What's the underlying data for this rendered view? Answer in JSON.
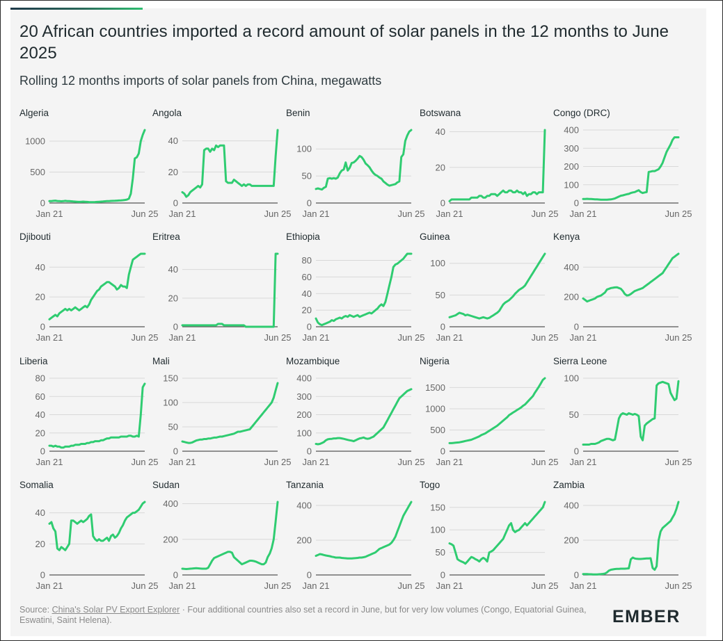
{
  "title": "20 African countries imported a record amount of solar panels in the 12 months to June 2025",
  "subtitle": "Rolling 12 months imports of solar panels from China, megawatts",
  "source": {
    "prefix": "Source: ",
    "link": "China's Solar PV Export Explorer",
    "suffix": " · Four additional countries also set a record in June, but for very low volumes (Congo, Equatorial Guinea, Eswatini, Saint Helena)."
  },
  "logo": {
    "text": "EMBER",
    "color": "#1f2a2e",
    "accent": "#2fbf71"
  },
  "colors": {
    "line": "#2fcc71",
    "grid": "#d8d8d8",
    "axis": "#555555",
    "tick": "#666666"
  },
  "chart_data": [
    {
      "type": "line",
      "panel": "Algeria",
      "x_labels": [
        "Jan 21",
        "Jun 25"
      ],
      "yticks": [
        0,
        500,
        1000
      ],
      "ylim": [
        0,
        1180
      ],
      "values": [
        30,
        32,
        35,
        38,
        33,
        30,
        28,
        30,
        35,
        32,
        30,
        28,
        25,
        22,
        20,
        18,
        20,
        22,
        20,
        18,
        15,
        14,
        15,
        16,
        18,
        20,
        22,
        25,
        28,
        30,
        32,
        34,
        35,
        36,
        38,
        40,
        42,
        45,
        50,
        55,
        70,
        150,
        400,
        720,
        740,
        800,
        1000,
        1100,
        1180
      ]
    },
    {
      "type": "line",
      "panel": "Angola",
      "x_labels": [
        "Jan 21",
        "Jun 25"
      ],
      "yticks": [
        0,
        20,
        40
      ],
      "ylim": [
        0,
        47
      ],
      "values": [
        7,
        6,
        4,
        5,
        7,
        8,
        9,
        10,
        11,
        10,
        12,
        34,
        35,
        35,
        33,
        35,
        34,
        37,
        36,
        37,
        37,
        37,
        14,
        13,
        13,
        13,
        15,
        14,
        13,
        12,
        11,
        12,
        11,
        12,
        12,
        11,
        11,
        11,
        11,
        11,
        11,
        11,
        11,
        11,
        11,
        11,
        11,
        30,
        47
      ]
    },
    {
      "type": "line",
      "panel": "Benin",
      "x_labels": [
        "Jan 21",
        "Jun 25"
      ],
      "yticks": [
        0,
        50,
        100
      ],
      "ylim": [
        0,
        135
      ],
      "values": [
        26,
        27,
        26,
        25,
        28,
        30,
        45,
        46,
        45,
        46,
        45,
        47,
        55,
        60,
        62,
        75,
        60,
        65,
        74,
        75,
        78,
        82,
        87,
        85,
        80,
        73,
        70,
        66,
        60,
        55,
        52,
        50,
        47,
        45,
        40,
        37,
        34,
        32,
        33,
        34,
        35,
        38,
        40,
        85,
        90,
        115,
        125,
        132,
        135
      ]
    },
    {
      "type": "line",
      "panel": "Botswana",
      "x_labels": [
        "Jan 21",
        "Jun 25"
      ],
      "yticks": [
        0,
        20,
        40
      ],
      "ylim": [
        0,
        41
      ],
      "values": [
        1,
        2,
        2,
        2,
        2,
        2,
        2,
        2,
        2,
        2,
        2,
        3,
        3,
        3,
        3,
        4,
        4,
        3,
        3,
        4,
        4,
        5,
        5,
        5,
        4,
        5,
        6,
        7,
        6,
        6,
        7,
        7,
        6,
        6,
        7,
        6,
        6,
        5,
        6,
        4,
        5,
        5,
        6,
        6,
        5,
        6,
        6,
        6,
        41
      ]
    },
    {
      "type": "line",
      "panel": "Congo (DRC)",
      "x_labels": [
        "Jan 21",
        "Jun 25"
      ],
      "yticks": [
        0,
        100,
        200,
        300,
        400
      ],
      "ylim": [
        0,
        360
      ],
      "values": [
        22,
        22,
        23,
        22,
        22,
        21,
        20,
        20,
        19,
        18,
        18,
        18,
        18,
        19,
        20,
        22,
        25,
        30,
        35,
        40,
        42,
        45,
        48,
        50,
        55,
        58,
        60,
        65,
        70,
        60,
        55,
        58,
        60,
        170,
        172,
        175,
        175,
        180,
        185,
        200,
        220,
        250,
        280,
        300,
        320,
        345,
        360,
        360,
        360
      ]
    },
    {
      "type": "line",
      "panel": "Djibouti",
      "x_labels": [
        "Jan 21",
        "Jun 25"
      ],
      "yticks": [
        0,
        20,
        40
      ],
      "ylim": [
        0,
        49
      ],
      "values": [
        5,
        6,
        7,
        8,
        7,
        9,
        10,
        11,
        12,
        11,
        12,
        11,
        12,
        13,
        12,
        11,
        12,
        13,
        14,
        13,
        15,
        18,
        20,
        22,
        24,
        25,
        27,
        28,
        29,
        30,
        30,
        29,
        28,
        27,
        25,
        26,
        28,
        27,
        27,
        26,
        35,
        40,
        45,
        46,
        47,
        48,
        49,
        49,
        49
      ]
    },
    {
      "type": "line",
      "panel": "Eritrea",
      "x_labels": [
        "Jan 21",
        "Jun 25"
      ],
      "yticks": [
        0,
        20,
        40
      ],
      "ylim": [
        0,
        51
      ],
      "values": [
        1,
        1,
        1,
        1,
        1,
        1,
        1,
        1,
        1,
        1,
        1,
        1,
        1,
        1,
        1,
        1,
        1,
        1,
        2,
        2,
        2,
        1,
        1,
        1,
        1,
        1,
        1,
        1,
        1,
        1,
        1,
        1,
        0,
        0,
        0,
        0,
        0,
        0,
        0,
        0,
        0,
        0,
        0,
        0,
        0,
        0,
        0,
        51,
        51
      ]
    },
    {
      "type": "line",
      "panel": "Ethiopia",
      "x_labels": [
        "Jan 21",
        "Jun 25"
      ],
      "yticks": [
        0,
        20,
        40,
        60,
        80
      ],
      "ylim": [
        0,
        88
      ],
      "values": [
        10,
        5,
        3,
        2,
        3,
        4,
        5,
        6,
        8,
        7,
        9,
        10,
        11,
        10,
        12,
        13,
        12,
        14,
        13,
        12,
        13,
        14,
        12,
        13,
        14,
        15,
        16,
        17,
        16,
        18,
        20,
        22,
        25,
        27,
        25,
        30,
        40,
        50,
        60,
        72,
        75,
        76,
        78,
        80,
        82,
        85,
        88,
        88,
        88
      ]
    },
    {
      "type": "line",
      "panel": "Guinea",
      "x_labels": [
        "Jan 21",
        "Jun 25"
      ],
      "yticks": [
        0,
        50,
        100
      ],
      "ylim": [
        0,
        115
      ],
      "values": [
        15,
        16,
        17,
        18,
        20,
        22,
        21,
        20,
        18,
        19,
        18,
        17,
        16,
        15,
        14,
        13,
        14,
        15,
        14,
        13,
        14,
        16,
        18,
        20,
        22,
        25,
        30,
        35,
        38,
        40,
        42,
        45,
        48,
        52,
        55,
        58,
        60,
        62,
        65,
        70,
        75,
        80,
        85,
        90,
        95,
        100,
        105,
        110,
        115
      ]
    },
    {
      "type": "line",
      "panel": "Kenya",
      "x_labels": [
        "Jan 21",
        "Jun 25"
      ],
      "yticks": [
        0,
        200,
        400
      ],
      "ylim": [
        0,
        490
      ],
      "values": [
        190,
        180,
        170,
        175,
        180,
        185,
        190,
        200,
        205,
        210,
        220,
        230,
        250,
        255,
        260,
        262,
        264,
        265,
        260,
        255,
        240,
        220,
        210,
        212,
        220,
        230,
        240,
        245,
        250,
        255,
        260,
        270,
        280,
        290,
        300,
        310,
        320,
        330,
        340,
        350,
        360,
        380,
        400,
        420,
        440,
        460,
        470,
        480,
        490
      ]
    },
    {
      "type": "line",
      "panel": "Liberia",
      "x_labels": [
        "Jan 21",
        "Jun 25"
      ],
      "yticks": [
        0,
        20,
        40,
        60,
        80
      ],
      "ylim": [
        0,
        74
      ],
      "values": [
        6,
        6,
        5,
        6,
        5,
        5,
        4,
        4,
        5,
        5,
        5,
        6,
        6,
        7,
        7,
        7,
        8,
        8,
        8,
        9,
        9,
        10,
        10,
        11,
        11,
        11,
        12,
        12,
        13,
        14,
        14,
        15,
        15,
        15,
        15,
        15,
        16,
        16,
        16,
        16,
        17,
        17,
        16,
        16,
        17,
        16,
        40,
        70,
        74
      ]
    },
    {
      "type": "line",
      "panel": "Mali",
      "x_labels": [
        "Jan 21",
        "Jun 25"
      ],
      "yticks": [
        0,
        50,
        100,
        150
      ],
      "ylim": [
        0,
        140
      ],
      "values": [
        20,
        19,
        18,
        17,
        17,
        18,
        20,
        22,
        23,
        24,
        24,
        25,
        25,
        26,
        26,
        27,
        28,
        28,
        29,
        30,
        30,
        31,
        32,
        33,
        34,
        35,
        36,
        38,
        40,
        40,
        41,
        42,
        43,
        44,
        45,
        50,
        55,
        60,
        65,
        70,
        75,
        80,
        85,
        90,
        95,
        100,
        110,
        125,
        140
      ]
    },
    {
      "type": "line",
      "panel": "Mozambique",
      "x_labels": [
        "Jan 21",
        "Jun 25"
      ],
      "yticks": [
        0,
        100,
        200,
        300,
        400
      ],
      "ylim": [
        0,
        340
      ],
      "values": [
        40,
        38,
        40,
        45,
        50,
        60,
        65,
        67,
        68,
        70,
        70,
        72,
        72,
        70,
        68,
        65,
        62,
        60,
        58,
        55,
        60,
        65,
        70,
        72,
        75,
        70,
        68,
        70,
        75,
        80,
        90,
        100,
        110,
        120,
        130,
        150,
        170,
        190,
        210,
        230,
        250,
        270,
        290,
        300,
        310,
        320,
        330,
        335,
        340
      ]
    },
    {
      "type": "line",
      "panel": "Nigeria",
      "x_labels": [
        "Jan 21",
        "Jun 25"
      ],
      "yticks": [
        0,
        500,
        1000,
        1500
      ],
      "ylim": [
        0,
        1720
      ],
      "values": [
        190,
        190,
        195,
        200,
        205,
        210,
        220,
        230,
        240,
        250,
        260,
        270,
        290,
        310,
        330,
        350,
        380,
        400,
        420,
        450,
        480,
        510,
        540,
        570,
        600,
        640,
        680,
        720,
        760,
        800,
        850,
        880,
        910,
        940,
        970,
        1000,
        1030,
        1070,
        1100,
        1150,
        1200,
        1250,
        1300,
        1380,
        1450,
        1520,
        1600,
        1680,
        1720
      ]
    },
    {
      "type": "line",
      "panel": "Sierra Leone",
      "x_labels": [
        "Jan 21",
        "Jun 25"
      ],
      "yticks": [
        0,
        50,
        100
      ],
      "ylim": [
        0,
        96
      ],
      "values": [
        9,
        9,
        9,
        9,
        10,
        10,
        10,
        11,
        12,
        14,
        15,
        16,
        17,
        17,
        16,
        15,
        16,
        30,
        45,
        50,
        52,
        51,
        50,
        52,
        51,
        50,
        51,
        50,
        48,
        20,
        15,
        35,
        38,
        40,
        42,
        44,
        45,
        90,
        93,
        94,
        95,
        94,
        93,
        92,
        80,
        75,
        70,
        72,
        96
      ]
    },
    {
      "type": "line",
      "panel": "Somalia",
      "x_labels": [
        "Jan 21",
        "Jun 25"
      ],
      "yticks": [
        0,
        20,
        40
      ],
      "ylim": [
        0,
        47
      ],
      "values": [
        33,
        34,
        30,
        28,
        17,
        16,
        18,
        17,
        16,
        18,
        20,
        35,
        35,
        34,
        33,
        34,
        35,
        34,
        35,
        36,
        38,
        39,
        25,
        23,
        22,
        23,
        22,
        22,
        23,
        24,
        22,
        25,
        26,
        24,
        25,
        27,
        30,
        32,
        35,
        37,
        38,
        39,
        40,
        40,
        41,
        42,
        44,
        46,
        47
      ]
    },
    {
      "type": "line",
      "panel": "Sudan",
      "x_labels": [
        "Jan 21",
        "Jun 25"
      ],
      "yticks": [
        0,
        200,
        400
      ],
      "ylim": [
        0,
        410
      ],
      "values": [
        35,
        34,
        33,
        34,
        35,
        36,
        37,
        38,
        37,
        36,
        35,
        35,
        35,
        40,
        60,
        80,
        95,
        100,
        105,
        110,
        115,
        120,
        125,
        130,
        130,
        125,
        100,
        90,
        80,
        70,
        60,
        65,
        70,
        75,
        80,
        80,
        78,
        75,
        70,
        65,
        60,
        60,
        70,
        100,
        120,
        150,
        200,
        300,
        410
      ]
    },
    {
      "type": "line",
      "panel": "Tanzania",
      "x_labels": [
        "Jan 21",
        "Jun 25"
      ],
      "yticks": [
        0,
        200,
        400
      ],
      "ylim": [
        0,
        420
      ],
      "values": [
        110,
        115,
        120,
        118,
        115,
        112,
        110,
        108,
        105,
        103,
        100,
        100,
        100,
        98,
        97,
        96,
        95,
        95,
        95,
        96,
        97,
        98,
        100,
        100,
        102,
        105,
        110,
        115,
        120,
        125,
        130,
        140,
        150,
        155,
        160,
        165,
        170,
        175,
        185,
        200,
        220,
        250,
        280,
        310,
        340,
        360,
        380,
        400,
        420
      ]
    },
    {
      "type": "line",
      "panel": "Togo",
      "x_labels": [
        "Jan 21",
        "Jun 25"
      ],
      "yticks": [
        0,
        50,
        100,
        150
      ],
      "ylim": [
        0,
        162
      ],
      "values": [
        70,
        68,
        65,
        50,
        35,
        32,
        30,
        28,
        25,
        30,
        35,
        40,
        38,
        35,
        33,
        30,
        35,
        38,
        35,
        30,
        50,
        52,
        55,
        60,
        65,
        70,
        75,
        80,
        90,
        100,
        110,
        115,
        100,
        95,
        98,
        100,
        105,
        110,
        115,
        110,
        115,
        120,
        125,
        130,
        135,
        140,
        145,
        150,
        162
      ]
    },
    {
      "type": "line",
      "panel": "Zambia",
      "x_labels": [
        "Jan 21",
        "Jun 25"
      ],
      "yticks": [
        0,
        200,
        400
      ],
      "ylim": [
        0,
        420
      ],
      "values": [
        5,
        5,
        5,
        4,
        4,
        3,
        3,
        3,
        4,
        5,
        6,
        8,
        15,
        25,
        30,
        32,
        34,
        35,
        35,
        36,
        36,
        36,
        37,
        38,
        90,
        100,
        95,
        93,
        92,
        92,
        93,
        94,
        95,
        95,
        96,
        40,
        30,
        50,
        200,
        250,
        270,
        280,
        290,
        300,
        310,
        330,
        350,
        380,
        420
      ]
    }
  ]
}
